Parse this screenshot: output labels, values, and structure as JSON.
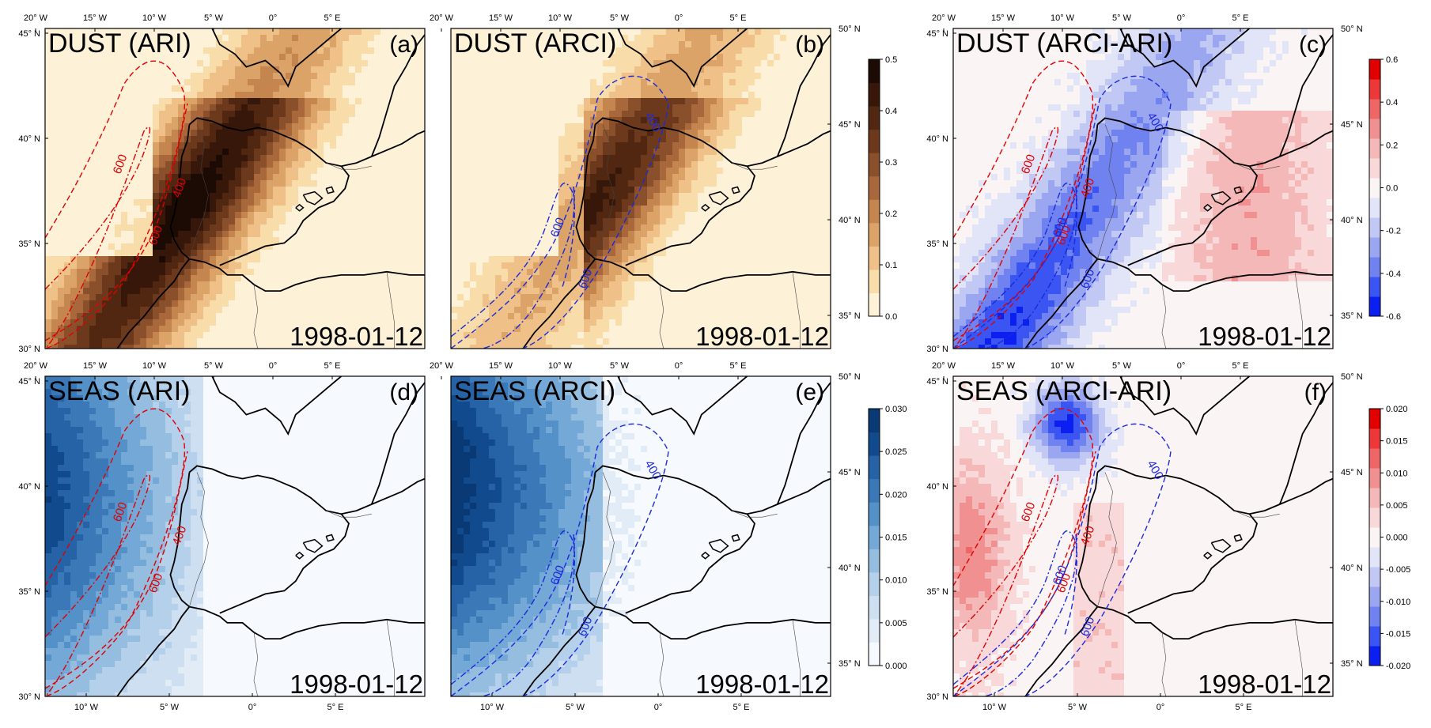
{
  "panels": [
    {
      "id": "a",
      "title": "DUST (ARI)",
      "letter": "(a)",
      "date": "1998-01-12",
      "field": "dust",
      "mode": "abs",
      "contours": "red"
    },
    {
      "id": "b",
      "title": "DUST (ARCI)",
      "letter": "(b)",
      "date": "1998-01-12",
      "field": "dust",
      "mode": "abs2",
      "contours": "blue"
    },
    {
      "id": "c",
      "title": "DUST (ARCI-ARI)",
      "letter": "(c)",
      "date": "1998-01-12",
      "field": "dust",
      "mode": "diff",
      "contours": "both"
    },
    {
      "id": "d",
      "title": "SEAS (ARI)",
      "letter": "(d)",
      "date": "1998-01-12",
      "field": "seas",
      "mode": "abs",
      "contours": "red"
    },
    {
      "id": "e",
      "title": "SEAS (ARCI)",
      "letter": "(e)",
      "date": "1998-01-12",
      "field": "seas",
      "mode": "abs2",
      "contours": "blue"
    },
    {
      "id": "f",
      "title": "SEAS (ARCI-ARI)",
      "letter": "(f)",
      "date": "1998-01-12",
      "field": "seas",
      "mode": "diff",
      "contours": "both"
    }
  ],
  "axes": {
    "top_lon_labels": [
      "20° W",
      "15° W",
      "10° W",
      "5° W",
      "0°",
      "5° E"
    ],
    "bottom_lon_labels": [
      "10° W",
      "5° W",
      "0°",
      "5° E"
    ],
    "left_lat_labels": [
      "45° N",
      "40° N",
      "35° N",
      "30° N"
    ],
    "right_lat_labels": [
      "50° N",
      "45° N",
      "40° N",
      "35° N"
    ]
  },
  "contour_labels": {
    "red": [
      "600",
      "600",
      "400"
    ],
    "blue": [
      "600",
      "600",
      "400"
    ]
  },
  "colorbars": {
    "dust_abs": {
      "ticks": [
        "0.5",
        "0.4",
        "0.3",
        "0.2",
        "0.1",
        "0.0"
      ]
    },
    "dust_diff": {
      "ticks": [
        "0.6",
        "0.4",
        "0.2",
        "0.0",
        "-0.2",
        "-0.4",
        "-0.6"
      ]
    },
    "seas_abs": {
      "ticks": [
        "0.030",
        "0.025",
        "0.020",
        "0.015",
        "0.010",
        "0.005",
        "0.000"
      ]
    },
    "seas_diff": {
      "ticks": [
        "0.020",
        "0.015",
        "0.010",
        "0.005",
        "0.000",
        "-0.005",
        "-0.010",
        "-0.015",
        "-0.020"
      ]
    }
  },
  "colors": {
    "dust_scale": [
      "#fdf1d8",
      "#f8dcaa",
      "#efc188",
      "#dba368",
      "#c5854f",
      "#a8683c",
      "#8a4f2b",
      "#6d391d",
      "#522712",
      "#36170a",
      "#1c0a04"
    ],
    "seas_scale": [
      "#f6f9fd",
      "#e2ecf7",
      "#cddff1",
      "#b4d0ea",
      "#95bde0",
      "#74a8d6",
      "#5591c9",
      "#3a78b8",
      "#2562a6",
      "#114a8d",
      "#0a3a75"
    ],
    "div_scale": [
      "#0b20f0",
      "#3b55f2",
      "#6f82f0",
      "#9aa6f0",
      "#c2c8f4",
      "#e2e4f8",
      "#fbf4f4",
      "#f8d8d8",
      "#f4b8b8",
      "#f19090",
      "#ee6666",
      "#ec3838",
      "#e00000"
    ],
    "red_contour": "#e00000",
    "blue_contour": "#1a2adb"
  }
}
